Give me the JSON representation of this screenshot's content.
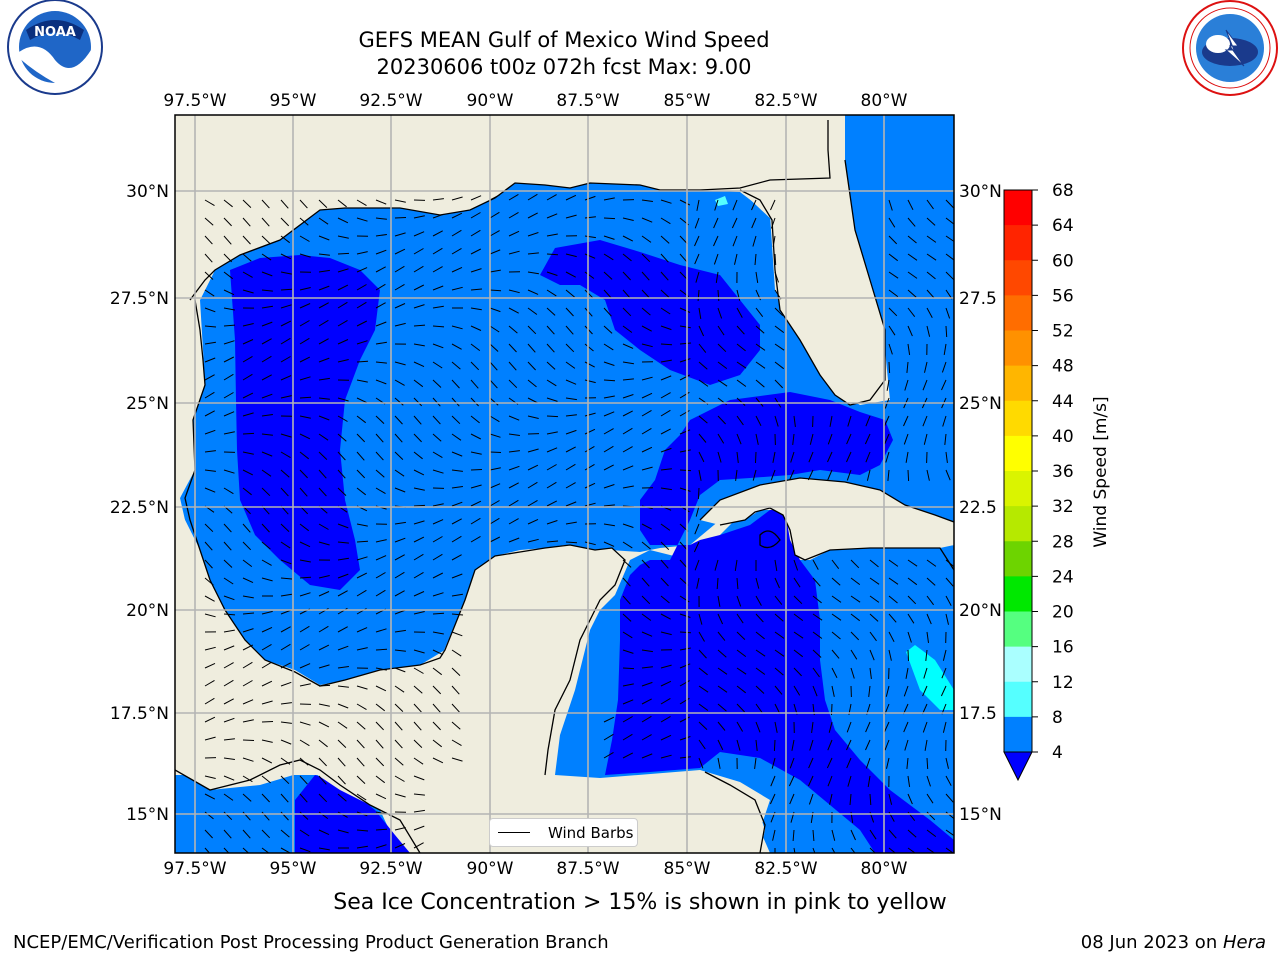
{
  "title": {
    "line1": "GEFS MEAN Gulf of Mexico Wind Speed",
    "line2": "20230606 t00z 072h fcst   Max: 9.00"
  },
  "map": {
    "lon_labels": [
      "97.5°W",
      "95°W",
      "92.5°W",
      "90°W",
      "87.5°W",
      "85°W",
      "82.5°W",
      "80°W"
    ],
    "lat_labels": [
      "30°N",
      "27.5°N",
      "25°N",
      "22.5°N",
      "20°N",
      "17.5°N",
      "15°N"
    ],
    "lat_labels_right": [
      "30°N",
      "27.5",
      "25°N",
      "22.5",
      "20°N",
      "17.5",
      "15°N"
    ],
    "legend_label": "Wind Barbs",
    "colors": {
      "land": "#efedde",
      "grid": "#b4b4b4",
      "wind_4_8": "#0080ff",
      "wind_under_4": "#0000ff",
      "wind_8_12": "#00ffff"
    }
  },
  "colorbar": {
    "label": "Wind Speed [m/s]",
    "ticks": [
      "68",
      "64",
      "60",
      "56",
      "52",
      "48",
      "44",
      "40",
      "36",
      "32",
      "28",
      "24",
      "20",
      "16",
      "12",
      "8",
      "4"
    ],
    "colors": [
      "#ff0000",
      "#ff2400",
      "#ff4800",
      "#ff6d00",
      "#ff9100",
      "#ffb600",
      "#ffda00",
      "#ffff00",
      "#daf400",
      "#b6e900",
      "#6dd400",
      "#24c000",
      "#00e800",
      "#55ff80",
      "#aaffff",
      "#55ffff",
      "#00ffff",
      "#0080ff"
    ],
    "under_color": "#0000ff"
  },
  "notes": {
    "sea_ice": "Sea Ice Concentration > 15% is shown in pink to yellow",
    "credit": "NCEP/EMC/Verification Post Processing Product Generation Branch",
    "date": "08 Jun 2023 on ",
    "machine": "Hera"
  },
  "logos": {
    "left_icon": "noaa-logo-icon",
    "right_icon": "nws-logo-icon"
  }
}
